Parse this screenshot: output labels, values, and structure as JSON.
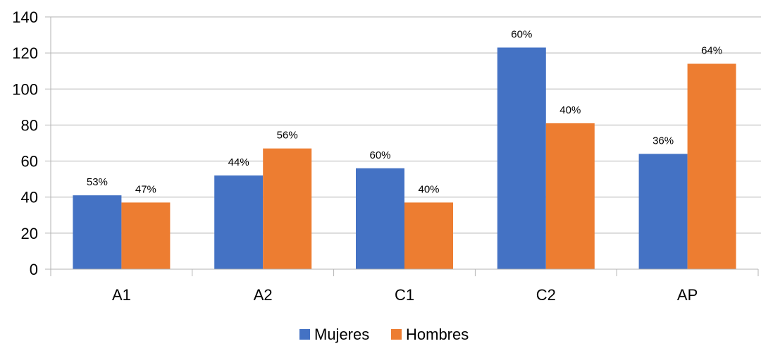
{
  "chart_data": {
    "type": "bar",
    "categories": [
      "A1",
      "A2",
      "C1",
      "C2",
      "AP"
    ],
    "series": [
      {
        "name": "Mujeres",
        "color": "#4472C4",
        "values": [
          41,
          52,
          56,
          123,
          64
        ],
        "labels": [
          "53%",
          "44%",
          "60%",
          "60%",
          "36%"
        ]
      },
      {
        "name": "Hombres",
        "color": "#ED7D31",
        "values": [
          37,
          67,
          37,
          81,
          114
        ],
        "labels": [
          "47%",
          "56%",
          "40%",
          "40%",
          "64%"
        ]
      }
    ],
    "ylim": [
      0,
      140
    ],
    "yticks": [
      0,
      20,
      40,
      60,
      80,
      100,
      120,
      140
    ],
    "grid": true,
    "legend": "bottom"
  }
}
